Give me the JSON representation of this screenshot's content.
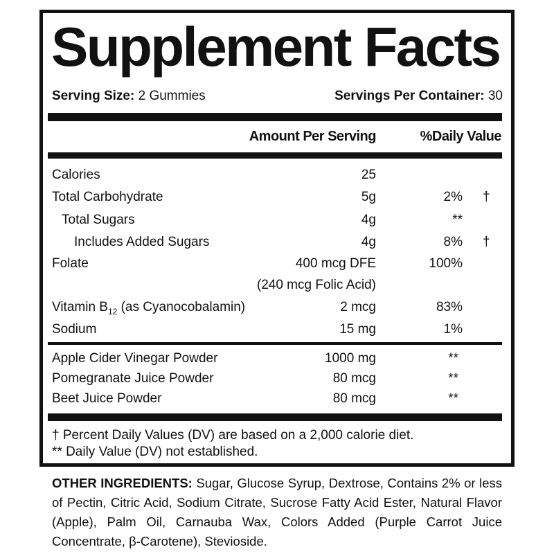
{
  "title": "Supplement Facts",
  "serving_size_label": "Serving Size:",
  "serving_size_value": "2 Gummies",
  "servings_label": "Servings Per Container:",
  "servings_value": "30",
  "header": {
    "amount": "Amount Per Serving",
    "dv": "%Daily Value"
  },
  "rows": [
    {
      "label": "Calories",
      "amount": "25",
      "dv": "",
      "mark": ""
    },
    {
      "label": "Total Carbohydrate",
      "amount": "5g",
      "dv": "2%",
      "mark": "†"
    },
    {
      "label": "Total Sugars",
      "amount": "4g",
      "dv": "**",
      "mark": ""
    },
    {
      "label": "Includes Added Sugars",
      "amount": "4g",
      "dv": "8%",
      "mark": "†"
    },
    {
      "label": "Folate",
      "amount": "400 mcg DFE",
      "dv": "100%",
      "mark": ""
    },
    {
      "label": "",
      "amount": "(240 mcg Folic Acid)",
      "dv": "",
      "mark": ""
    },
    {
      "label_pre": "Vitamin B",
      "label_sub": "12",
      "label_post": " (as Cyanocobalamin)",
      "amount": "2 mcg",
      "dv": "83%",
      "mark": ""
    },
    {
      "label": "Sodium",
      "amount": "15 mg",
      "dv": "1%",
      "mark": ""
    }
  ],
  "other_rows": [
    {
      "label": "Apple Cider Vinegar Powder",
      "amount": "1000 mg",
      "dv": "**"
    },
    {
      "label": "Pomegranate Juice Powder",
      "amount": "80 mcg",
      "dv": "**"
    },
    {
      "label": "Beet Juice Powder",
      "amount": "80 mcg",
      "dv": "**"
    }
  ],
  "footnotes": [
    "† Percent Daily Values (DV) are based on a 2,000 calorie diet.",
    "** Daily Value (DV) not established."
  ],
  "other_ingredients_label": "OTHER INGREDIENTS:",
  "other_ingredients_text": " Sugar, Glucose Syrup, Dextrose, Contains 2% or less of Pectin, Citric Acid, Sodium Citrate, Sucrose Fatty Acid Ester, Natural Flavor (Apple), Palm Oil, Carnauba Wax, Colors Added (Purple Carrot Juice Concentrate, β-Carotene), Stevioside."
}
